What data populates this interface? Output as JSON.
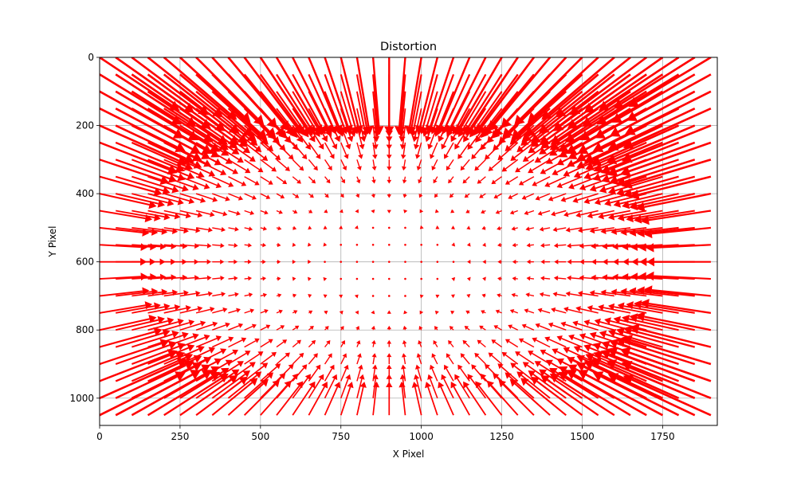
{
  "chart_data": {
    "type": "quiver",
    "title": "Distortion",
    "xlabel": "X Pixel",
    "ylabel": "Y Pixel",
    "xlim": [
      0,
      1920
    ],
    "ylim": [
      1080,
      0
    ],
    "y_inverted": true,
    "grid": true,
    "xticks": [
      0,
      250,
      500,
      750,
      1000,
      1250,
      1500,
      1750
    ],
    "yticks": [
      0,
      200,
      400,
      600,
      800,
      1000
    ],
    "xtick_labels": [
      "0",
      "250",
      "500",
      "750",
      "1000",
      "1250",
      "1500",
      "1750"
    ],
    "ytick_labels": [
      "0",
      "200",
      "400",
      "600",
      "800",
      "1000"
    ],
    "arrow_color": "#ff0000",
    "grid_color": "#b0b0b0",
    "field": {
      "x_start": 0,
      "x_end": 1900,
      "x_step": 50,
      "y_start": 0,
      "y_end": 1050,
      "y_step": 50,
      "center_x": 900,
      "center_y": 600,
      "description_free": true,
      "arrow_direction": "outward-from-center",
      "max_vector": 260
    }
  }
}
